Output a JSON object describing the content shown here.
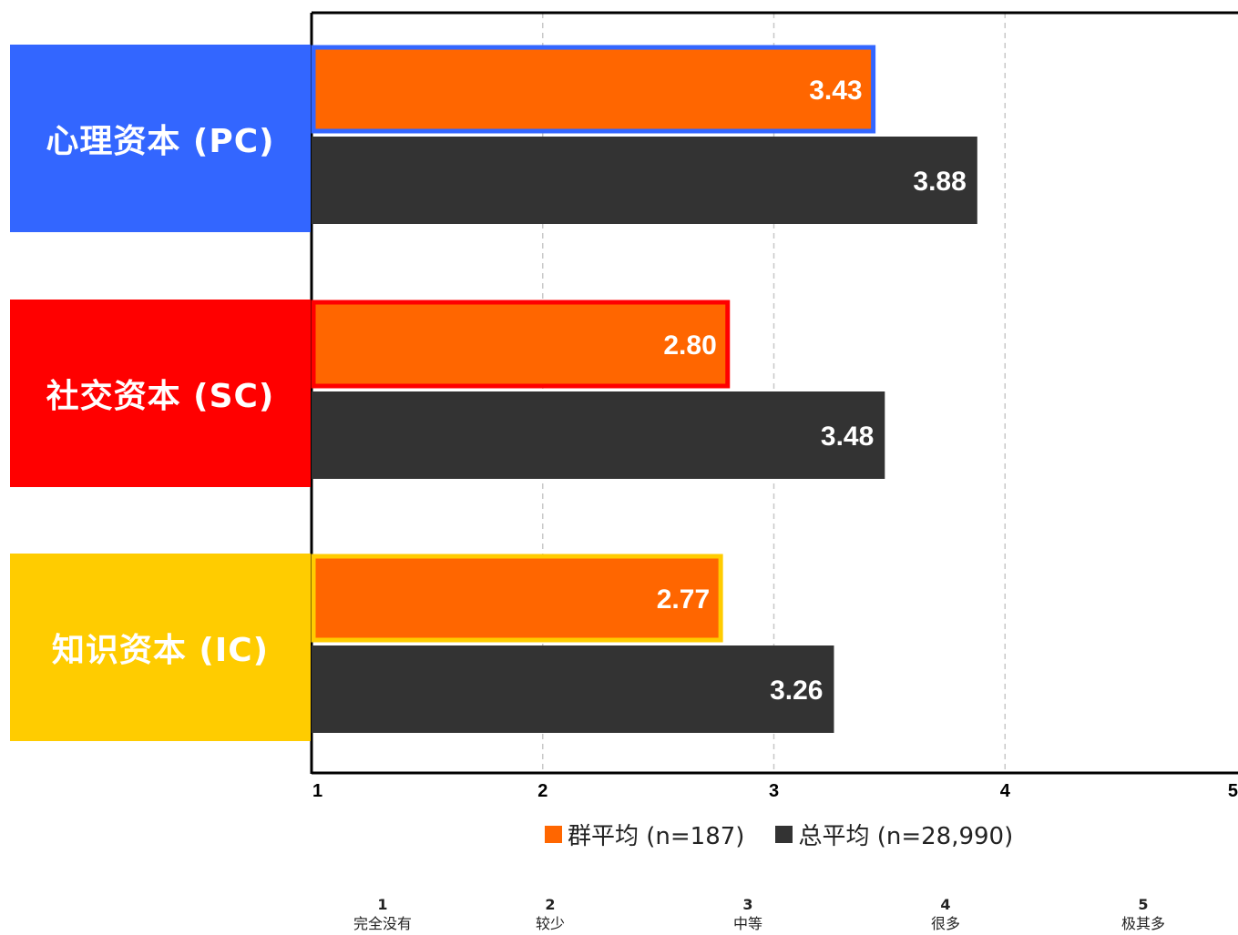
{
  "chart_data": {
    "type": "bar",
    "orientation": "horizontal",
    "categories": [
      "心理资本 (PC)",
      "社交资本 (SC)",
      "知识资本 (IC)"
    ],
    "category_colors": [
      "#3366FF",
      "#FF0000",
      "#FFCC00"
    ],
    "series": [
      {
        "name": "群平均 (n=187)",
        "color": "#FF6600",
        "values": [
          3.43,
          2.8,
          2.77
        ],
        "labels": [
          "3.43",
          "2.80",
          "2.77"
        ]
      },
      {
        "name": "总平均 (n=28,990)",
        "color": "#333333",
        "values": [
          3.88,
          3.48,
          3.26
        ],
        "labels": [
          "3.88",
          "3.48",
          "3.26"
        ]
      }
    ],
    "xlim": [
      1,
      5
    ],
    "xticks": [
      "1",
      "2",
      "3",
      "4",
      "5"
    ],
    "grid": "vertical dashed",
    "legend": "bottom"
  },
  "scale_key": [
    {
      "num": "1",
      "text": "完全没有"
    },
    {
      "num": "2",
      "text": "较少"
    },
    {
      "num": "3",
      "text": "中等"
    },
    {
      "num": "4",
      "text": "很多"
    },
    {
      "num": "5",
      "text": "极其多"
    }
  ]
}
